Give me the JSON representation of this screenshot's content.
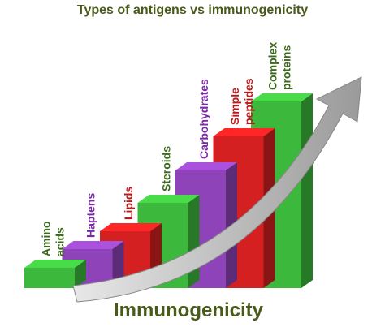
{
  "chart_data": {
    "type": "bar",
    "title": "Types of antigens vs immunogenicity",
    "x_label": "Immunogenicity",
    "categories": [
      [
        "Amino",
        "acids"
      ],
      [
        "Haptens"
      ],
      [
        "Lipids"
      ],
      [
        "Steroids"
      ],
      [
        "Carbohydrates"
      ],
      [
        "Simple",
        "peptides"
      ],
      [
        "Complex",
        "proteins"
      ]
    ],
    "values": [
      25,
      48,
      70,
      105,
      145,
      187,
      230
    ],
    "colors": [
      "#3cb83c",
      "#8e44b8",
      "#d42020",
      "#3cb83c",
      "#8e44b8",
      "#d42020",
      "#3cb83c"
    ],
    "label_colors": [
      "#3a6a1a",
      "#7a2aa8",
      "#c01818",
      "#3a6a1a",
      "#7a2aa8",
      "#c01818",
      "#3a6a1a"
    ],
    "ylim": [
      0,
      250
    ]
  }
}
